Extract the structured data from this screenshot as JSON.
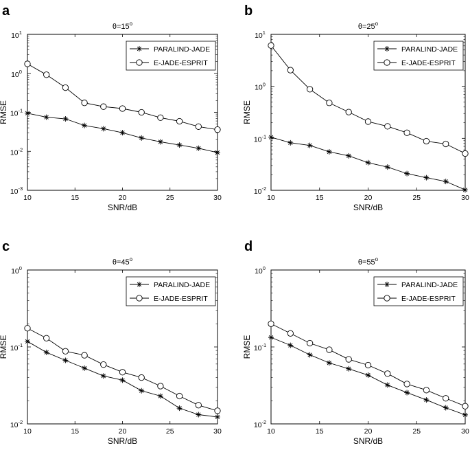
{
  "chart_data": [
    {
      "panel": "a",
      "type": "line",
      "title": "θ=15°",
      "title_base": "θ=15",
      "title_deg": "o",
      "xlabel": "SNR/dB",
      "ylabel": "RMSE",
      "xlim": [
        10,
        30
      ],
      "ylim": [
        0.001,
        10
      ],
      "yscale": "log",
      "xticks": [
        10,
        15,
        20,
        25,
        30
      ],
      "yticks": [
        {
          "base": "10",
          "exp": "1",
          "value": 10
        },
        {
          "base": "10",
          "exp": "0",
          "value": 1
        },
        {
          "base": "10",
          "exp": "-1",
          "value": 0.1
        },
        {
          "base": "10",
          "exp": "-2",
          "value": 0.01
        },
        {
          "base": "10",
          "exp": "-3",
          "value": 0.001
        }
      ],
      "legend": "top-right",
      "x": [
        10,
        12,
        14,
        16,
        18,
        20,
        22,
        24,
        26,
        28,
        30
      ],
      "series": [
        {
          "name": "PARALIND-JADE",
          "marker": "star",
          "values": [
            0.095,
            0.075,
            0.068,
            0.046,
            0.038,
            0.03,
            0.022,
            0.0175,
            0.0145,
            0.012,
            0.0093
          ]
        },
        {
          "name": "E-JADE-ESPRIT",
          "marker": "circle",
          "values": [
            1.75,
            0.92,
            0.43,
            0.175,
            0.14,
            0.125,
            0.1,
            0.073,
            0.059,
            0.043,
            0.036
          ]
        }
      ]
    },
    {
      "panel": "b",
      "type": "line",
      "title": "θ=25°",
      "title_base": "θ=25",
      "title_deg": "o",
      "xlabel": "SNR/dB",
      "ylabel": "RMSE",
      "xlim": [
        10,
        30
      ],
      "ylim": [
        0.01,
        10
      ],
      "yscale": "log",
      "xticks": [
        10,
        15,
        20,
        25,
        30
      ],
      "yticks": [
        {
          "base": "10",
          "exp": "1",
          "value": 10
        },
        {
          "base": "10",
          "exp": "0",
          "value": 1
        },
        {
          "base": "10",
          "exp": "-1",
          "value": 0.1
        },
        {
          "base": "10",
          "exp": "-2",
          "value": 0.01
        }
      ],
      "legend": "top-right",
      "x": [
        10,
        12,
        14,
        16,
        18,
        20,
        22,
        24,
        26,
        28,
        30
      ],
      "series": [
        {
          "name": "PARALIND-JADE",
          "marker": "star",
          "values": [
            0.105,
            0.082,
            0.073,
            0.055,
            0.046,
            0.034,
            0.028,
            0.021,
            0.0175,
            0.0148,
            0.0102
          ]
        },
        {
          "name": "E-JADE-ESPRIT",
          "marker": "circle",
          "values": [
            6.1,
            2.05,
            0.88,
            0.48,
            0.32,
            0.21,
            0.17,
            0.128,
            0.088,
            0.078,
            0.051
          ]
        }
      ]
    },
    {
      "panel": "c",
      "type": "line",
      "title": "θ=45°",
      "title_base": "θ=45",
      "title_deg": "o",
      "xlabel": "SNR/dB",
      "ylabel": "RMSE",
      "xlim": [
        10,
        30
      ],
      "ylim": [
        0.01,
        1
      ],
      "yscale": "log",
      "xticks": [
        10,
        15,
        20,
        25,
        30
      ],
      "yticks": [
        {
          "base": "10",
          "exp": "0",
          "value": 1
        },
        {
          "base": "10",
          "exp": "-1",
          "value": 0.1
        },
        {
          "base": "10",
          "exp": "-2",
          "value": 0.01
        }
      ],
      "legend": "top-right",
      "x": [
        10,
        12,
        14,
        16,
        18,
        20,
        22,
        24,
        26,
        28,
        30
      ],
      "series": [
        {
          "name": "PARALIND-JADE",
          "marker": "star",
          "values": [
            0.118,
            0.085,
            0.067,
            0.053,
            0.042,
            0.037,
            0.027,
            0.023,
            0.016,
            0.0132,
            0.0123
          ]
        },
        {
          "name": "E-JADE-ESPRIT",
          "marker": "circle",
          "values": [
            0.175,
            0.13,
            0.088,
            0.078,
            0.059,
            0.047,
            0.04,
            0.031,
            0.023,
            0.0175,
            0.0148
          ]
        }
      ]
    },
    {
      "panel": "d",
      "type": "line",
      "title": "θ=55°",
      "title_base": "θ=55",
      "title_deg": "o",
      "xlabel": "SNR/dB",
      "ylabel": "RMSE",
      "xlim": [
        10,
        30
      ],
      "ylim": [
        0.01,
        1
      ],
      "yscale": "log",
      "xticks": [
        10,
        15,
        20,
        25,
        30
      ],
      "yticks": [
        {
          "base": "10",
          "exp": "0",
          "value": 1
        },
        {
          "base": "10",
          "exp": "-1",
          "value": 0.1
        },
        {
          "base": "10",
          "exp": "-2",
          "value": 0.01
        }
      ],
      "legend": "top-right",
      "x": [
        10,
        12,
        14,
        16,
        18,
        20,
        22,
        24,
        26,
        28,
        30
      ],
      "series": [
        {
          "name": "PARALIND-JADE",
          "marker": "star",
          "values": [
            0.133,
            0.105,
            0.079,
            0.062,
            0.052,
            0.043,
            0.032,
            0.0255,
            0.0205,
            0.0162,
            0.0131
          ]
        },
        {
          "name": "E-JADE-ESPRIT",
          "marker": "circle",
          "values": [
            0.2,
            0.15,
            0.112,
            0.092,
            0.069,
            0.058,
            0.045,
            0.033,
            0.0275,
            0.0215,
            0.017
          ]
        }
      ]
    }
  ]
}
